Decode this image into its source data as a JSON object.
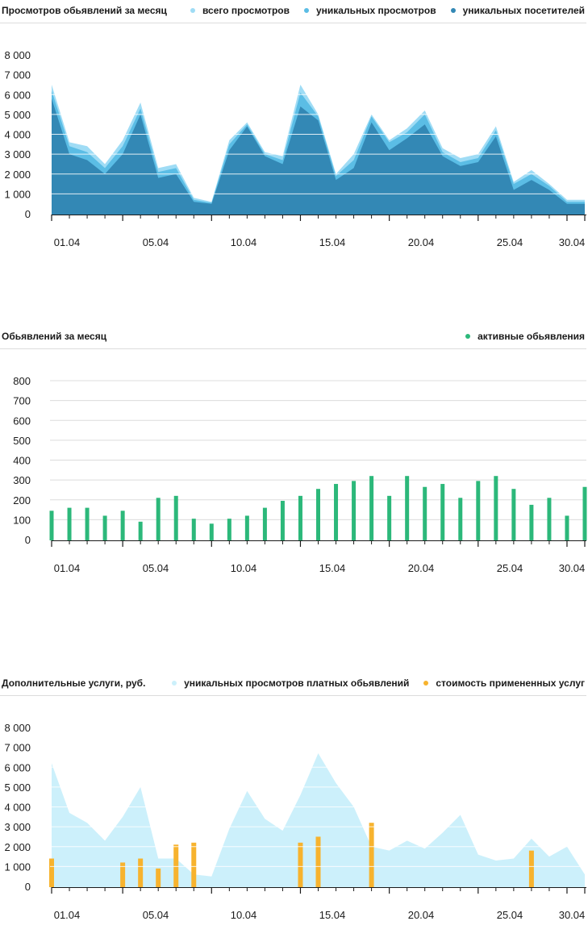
{
  "chart_data": [
    {
      "type": "area",
      "title": "Просмотров обьявлений за месяц",
      "legend_placement": "top-right",
      "ylim": [
        0,
        8000
      ],
      "y_ticks": [
        "8 000",
        "7 000",
        "6 000",
        "5 000",
        "4 000",
        "3 000",
        "2 000",
        "1 000",
        "0"
      ],
      "x_ticks": [
        "01.04",
        "05.04",
        "10.04",
        "15.04",
        "20.04",
        "25.04",
        "30.04"
      ],
      "x": [
        1,
        2,
        3,
        4,
        5,
        6,
        7,
        8,
        9,
        10,
        11,
        12,
        13,
        14,
        15,
        16,
        17,
        18,
        19,
        20,
        21,
        22,
        23,
        24,
        25,
        26,
        27,
        28,
        29,
        30,
        31
      ],
      "series": [
        {
          "name": "всего просмотров",
          "color": "#9fdcf5",
          "values": [
            6500,
            3600,
            3400,
            2500,
            3700,
            5600,
            2300,
            2500,
            800,
            600,
            3700,
            4600,
            3100,
            2900,
            6500,
            5000,
            2000,
            3000,
            5000,
            3700,
            4300,
            5200,
            3300,
            2800,
            3000,
            4400,
            1600,
            2200,
            1500,
            700,
            700
          ]
        },
        {
          "name": "уникальных просмотров",
          "color": "#5bbde5",
          "values": [
            6200,
            3400,
            3100,
            2300,
            3400,
            5300,
            2100,
            2300,
            700,
            550,
            3500,
            4500,
            3000,
            2700,
            6100,
            4900,
            1900,
            2700,
            4900,
            3600,
            4100,
            5000,
            3100,
            2600,
            2800,
            4200,
            1500,
            2000,
            1400,
            600,
            600
          ]
        },
        {
          "name": "уникальных посетителей",
          "color": "#3388b5",
          "values": [
            5800,
            3000,
            2700,
            2000,
            3000,
            5000,
            1800,
            2000,
            600,
            500,
            3200,
            4400,
            2900,
            2500,
            5400,
            4700,
            1700,
            2300,
            4600,
            3200,
            3800,
            4500,
            2900,
            2400,
            2600,
            3900,
            1200,
            1700,
            1200,
            500,
            500
          ]
        }
      ]
    },
    {
      "type": "bar",
      "title": "Обьявлений за месяц",
      "legend_placement": "top-right",
      "ylim": [
        0,
        800
      ],
      "y_ticks": [
        "800",
        "700",
        "600",
        "500",
        "400",
        "300",
        "200",
        "100",
        "0"
      ],
      "x_ticks": [
        "01.04",
        "05.04",
        "10.04",
        "15.04",
        "20.04",
        "25.04",
        "30.04"
      ],
      "x": [
        1,
        2,
        3,
        4,
        5,
        6,
        7,
        8,
        9,
        10,
        11,
        12,
        13,
        14,
        15,
        16,
        17,
        18,
        19,
        20,
        21,
        22,
        23,
        24,
        25,
        26,
        27,
        28,
        29,
        30,
        31
      ],
      "series": [
        {
          "name": "активные обьявления",
          "color": "#2cb87a",
          "values": [
            145,
            160,
            160,
            120,
            145,
            90,
            210,
            220,
            105,
            80,
            105,
            120,
            160,
            195,
            220,
            255,
            280,
            295,
            320,
            220,
            320,
            265,
            280,
            210,
            295,
            320,
            255,
            175,
            210,
            120,
            265
          ]
        }
      ]
    },
    {
      "type": "area",
      "title": "Дополнительные услуги, руб.",
      "legend_placement": "top-right",
      "ylim": [
        0,
        8000
      ],
      "y_ticks": [
        "8 000",
        "7 000",
        "6 000",
        "5 000",
        "4 000",
        "3 000",
        "2 000",
        "1 000",
        "0"
      ],
      "x_ticks": [
        "01.04",
        "05.04",
        "10.04",
        "15.04",
        "20.04",
        "25.04",
        "30.04"
      ],
      "x": [
        1,
        2,
        3,
        4,
        5,
        6,
        7,
        8,
        9,
        10,
        11,
        12,
        13,
        14,
        15,
        16,
        17,
        18,
        19,
        20,
        21,
        22,
        23,
        24,
        25,
        26,
        27,
        28,
        29,
        30,
        31
      ],
      "series": [
        {
          "name": "уникальных просмотров платных обьявлений",
          "color": "#ccf0fb",
          "kind": "area",
          "values": [
            6200,
            3700,
            3200,
            2300,
            3500,
            5000,
            1400,
            1400,
            600,
            500,
            2900,
            4800,
            3400,
            2800,
            4600,
            6700,
            5200,
            4000,
            2000,
            1800,
            2300,
            1900,
            2700,
            3600,
            1600,
            1300,
            1400,
            2400,
            1500,
            2000,
            600
          ]
        },
        {
          "name": "стоимость примененных услуг",
          "color": "#f7b32e",
          "kind": "bar",
          "values": [
            1400,
            0,
            0,
            0,
            1200,
            1400,
            900,
            2100,
            2200,
            0,
            0,
            0,
            0,
            0,
            2200,
            2500,
            0,
            0,
            3200,
            0,
            0,
            0,
            0,
            0,
            0,
            0,
            0,
            1800,
            0,
            0,
            0
          ]
        }
      ]
    }
  ]
}
